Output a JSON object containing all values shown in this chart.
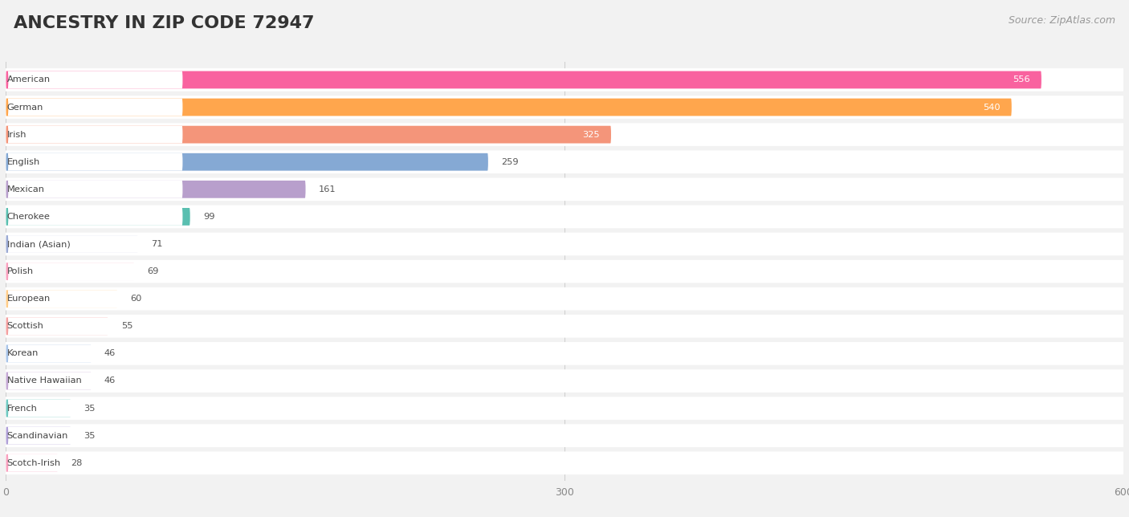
{
  "title": "ANCESTRY IN ZIP CODE 72947",
  "source": "Source: ZipAtlas.com",
  "categories": [
    "American",
    "German",
    "Irish",
    "English",
    "Mexican",
    "Cherokee",
    "Indian (Asian)",
    "Polish",
    "European",
    "Scottish",
    "Korean",
    "Native Hawaiian",
    "French",
    "Scandinavian",
    "Scotch-Irish"
  ],
  "values": [
    556,
    540,
    325,
    259,
    161,
    99,
    71,
    69,
    60,
    55,
    46,
    46,
    35,
    35,
    28
  ],
  "bar_colors": [
    "#F9629F",
    "#FFA64D",
    "#F4957A",
    "#85A9D4",
    "#B89FCC",
    "#5ABFB0",
    "#9BAAD4",
    "#F9A0BE",
    "#FFCC88",
    "#F4A0A0",
    "#A8C4E8",
    "#C4A8D4",
    "#6EC8C0",
    "#B0A0D8",
    "#F9A0BE"
  ],
  "xlim": [
    0,
    600
  ],
  "xticks": [
    0,
    300,
    600
  ],
  "background_color": "#f2f2f2",
  "bar_bg_color": "#ffffff",
  "row_bg_color": "#ffffff",
  "title_fontsize": 16,
  "source_fontsize": 9,
  "value_outside_threshold": 300
}
